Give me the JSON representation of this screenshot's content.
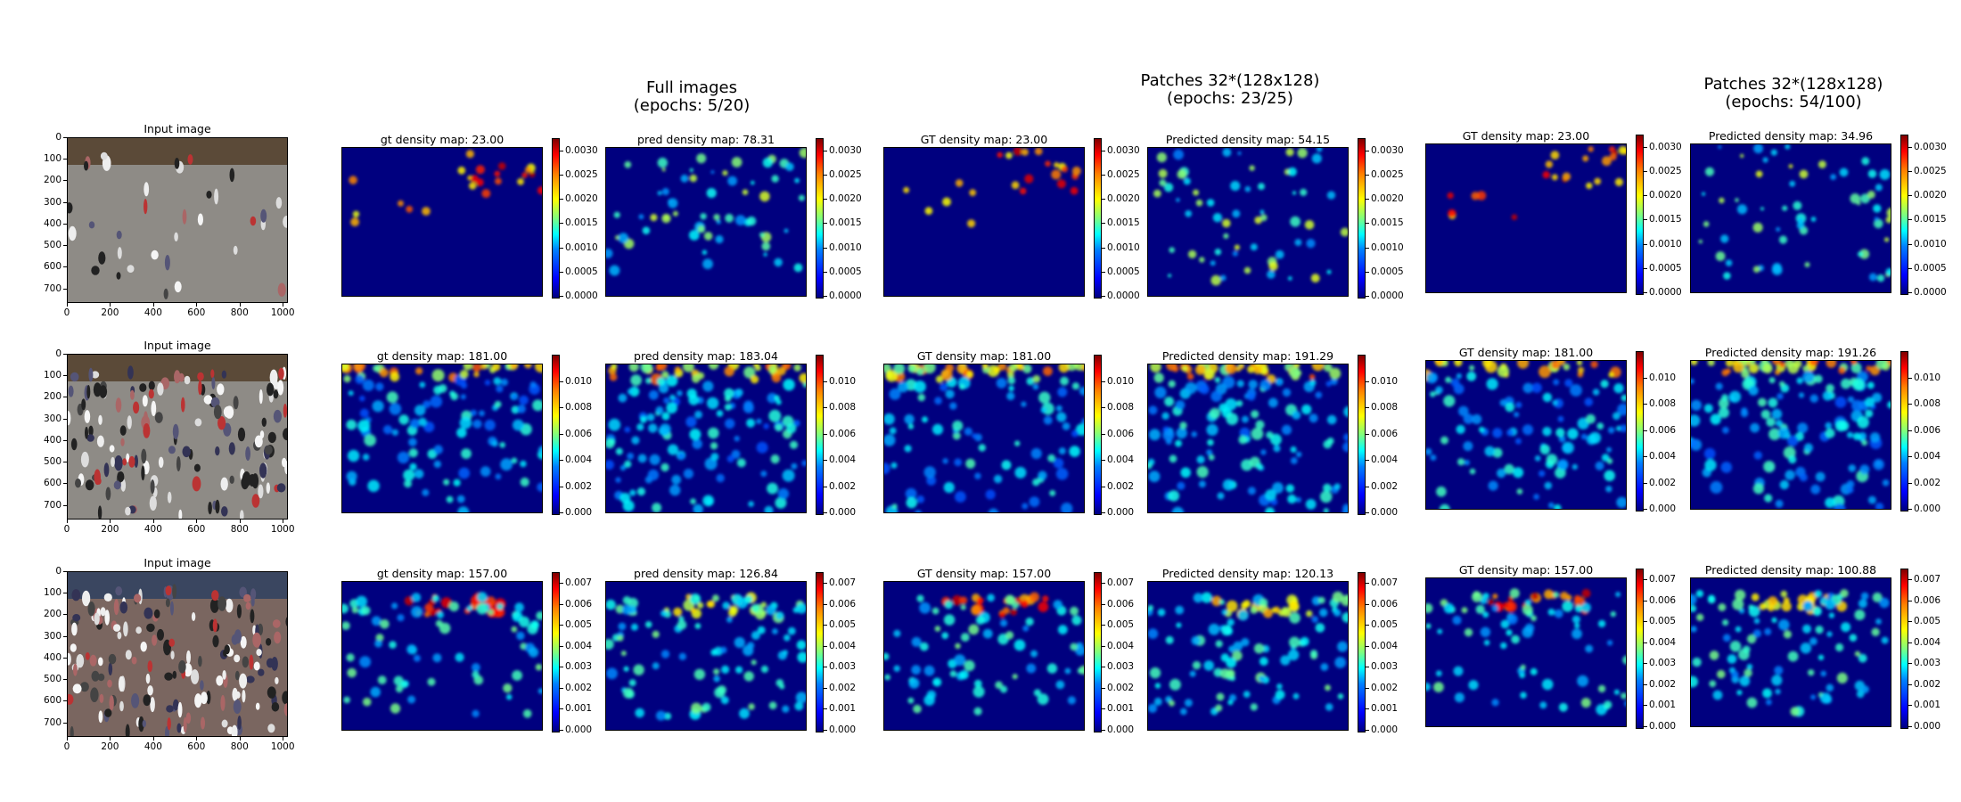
{
  "colors": {
    "map_background": "#00007f",
    "colormap": "jet"
  },
  "group_titles": [
    {
      "line1": "Full images",
      "line2": "(epochs: 5/20)"
    },
    {
      "line1": "Patches 32*(128x128)",
      "line2": "(epochs: 23/25)"
    },
    {
      "line1": "Patches 32*(128x128)",
      "line2": "(epochs: 54/100)"
    }
  ],
  "chart_data": {
    "type": "heatmap",
    "input_image": {
      "title": "Input image",
      "xticks": [
        "0",
        "200",
        "400",
        "600",
        "800",
        "1000"
      ],
      "yticks": [
        "0",
        "100",
        "200",
        "300",
        "400",
        "500",
        "600",
        "700"
      ],
      "xlim": [
        0,
        1024
      ],
      "ylim": [
        768,
        0
      ]
    },
    "rows": [
      {
        "colorbar_ticks": [
          "0.0000",
          "0.0005",
          "0.0010",
          "0.0015",
          "0.0020",
          "0.0025",
          "0.0030"
        ],
        "colorbar_range": [
          0,
          0.0032
        ],
        "panels": [
          {
            "title": "gt density map: 23.00",
            "count": 23.0
          },
          {
            "title": "pred density map: 78.31",
            "count": 78.31
          },
          {
            "title": "GT density map: 23.00",
            "count": 23.0
          },
          {
            "title": "Predicted density map: 54.15",
            "count": 54.15
          },
          {
            "title": "GT density map: 23.00",
            "count": 23.0
          },
          {
            "title": "Predicted density map: 34.96",
            "count": 34.96
          }
        ]
      },
      {
        "colorbar_ticks": [
          "0.000",
          "0.002",
          "0.004",
          "0.006",
          "0.008",
          "0.010"
        ],
        "colorbar_range": [
          0,
          0.0118
        ],
        "panels": [
          {
            "title": "gt density map: 181.00",
            "count": 181.0
          },
          {
            "title": "pred density map: 183.04",
            "count": 183.04
          },
          {
            "title": "GT density map: 181.00",
            "count": 181.0
          },
          {
            "title": "Predicted density map: 191.29",
            "count": 191.29
          },
          {
            "title": "GT density map: 181.00",
            "count": 181.0
          },
          {
            "title": "Predicted density map: 191.26",
            "count": 191.26
          }
        ]
      },
      {
        "colorbar_ticks": [
          "0.000",
          "0.001",
          "0.002",
          "0.003",
          "0.004",
          "0.005",
          "0.006",
          "0.007"
        ],
        "colorbar_range": [
          0,
          0.0074
        ],
        "panels": [
          {
            "title": "gt density map: 157.00",
            "count": 157.0
          },
          {
            "title": "pred density map: 126.84",
            "count": 126.84
          },
          {
            "title": "GT density map: 157.00",
            "count": 157.0
          },
          {
            "title": "Predicted density map: 120.13",
            "count": 120.13
          },
          {
            "title": "GT density map: 157.00",
            "count": 157.0
          },
          {
            "title": "Predicted density map: 100.88",
            "count": 100.88
          }
        ]
      }
    ]
  }
}
